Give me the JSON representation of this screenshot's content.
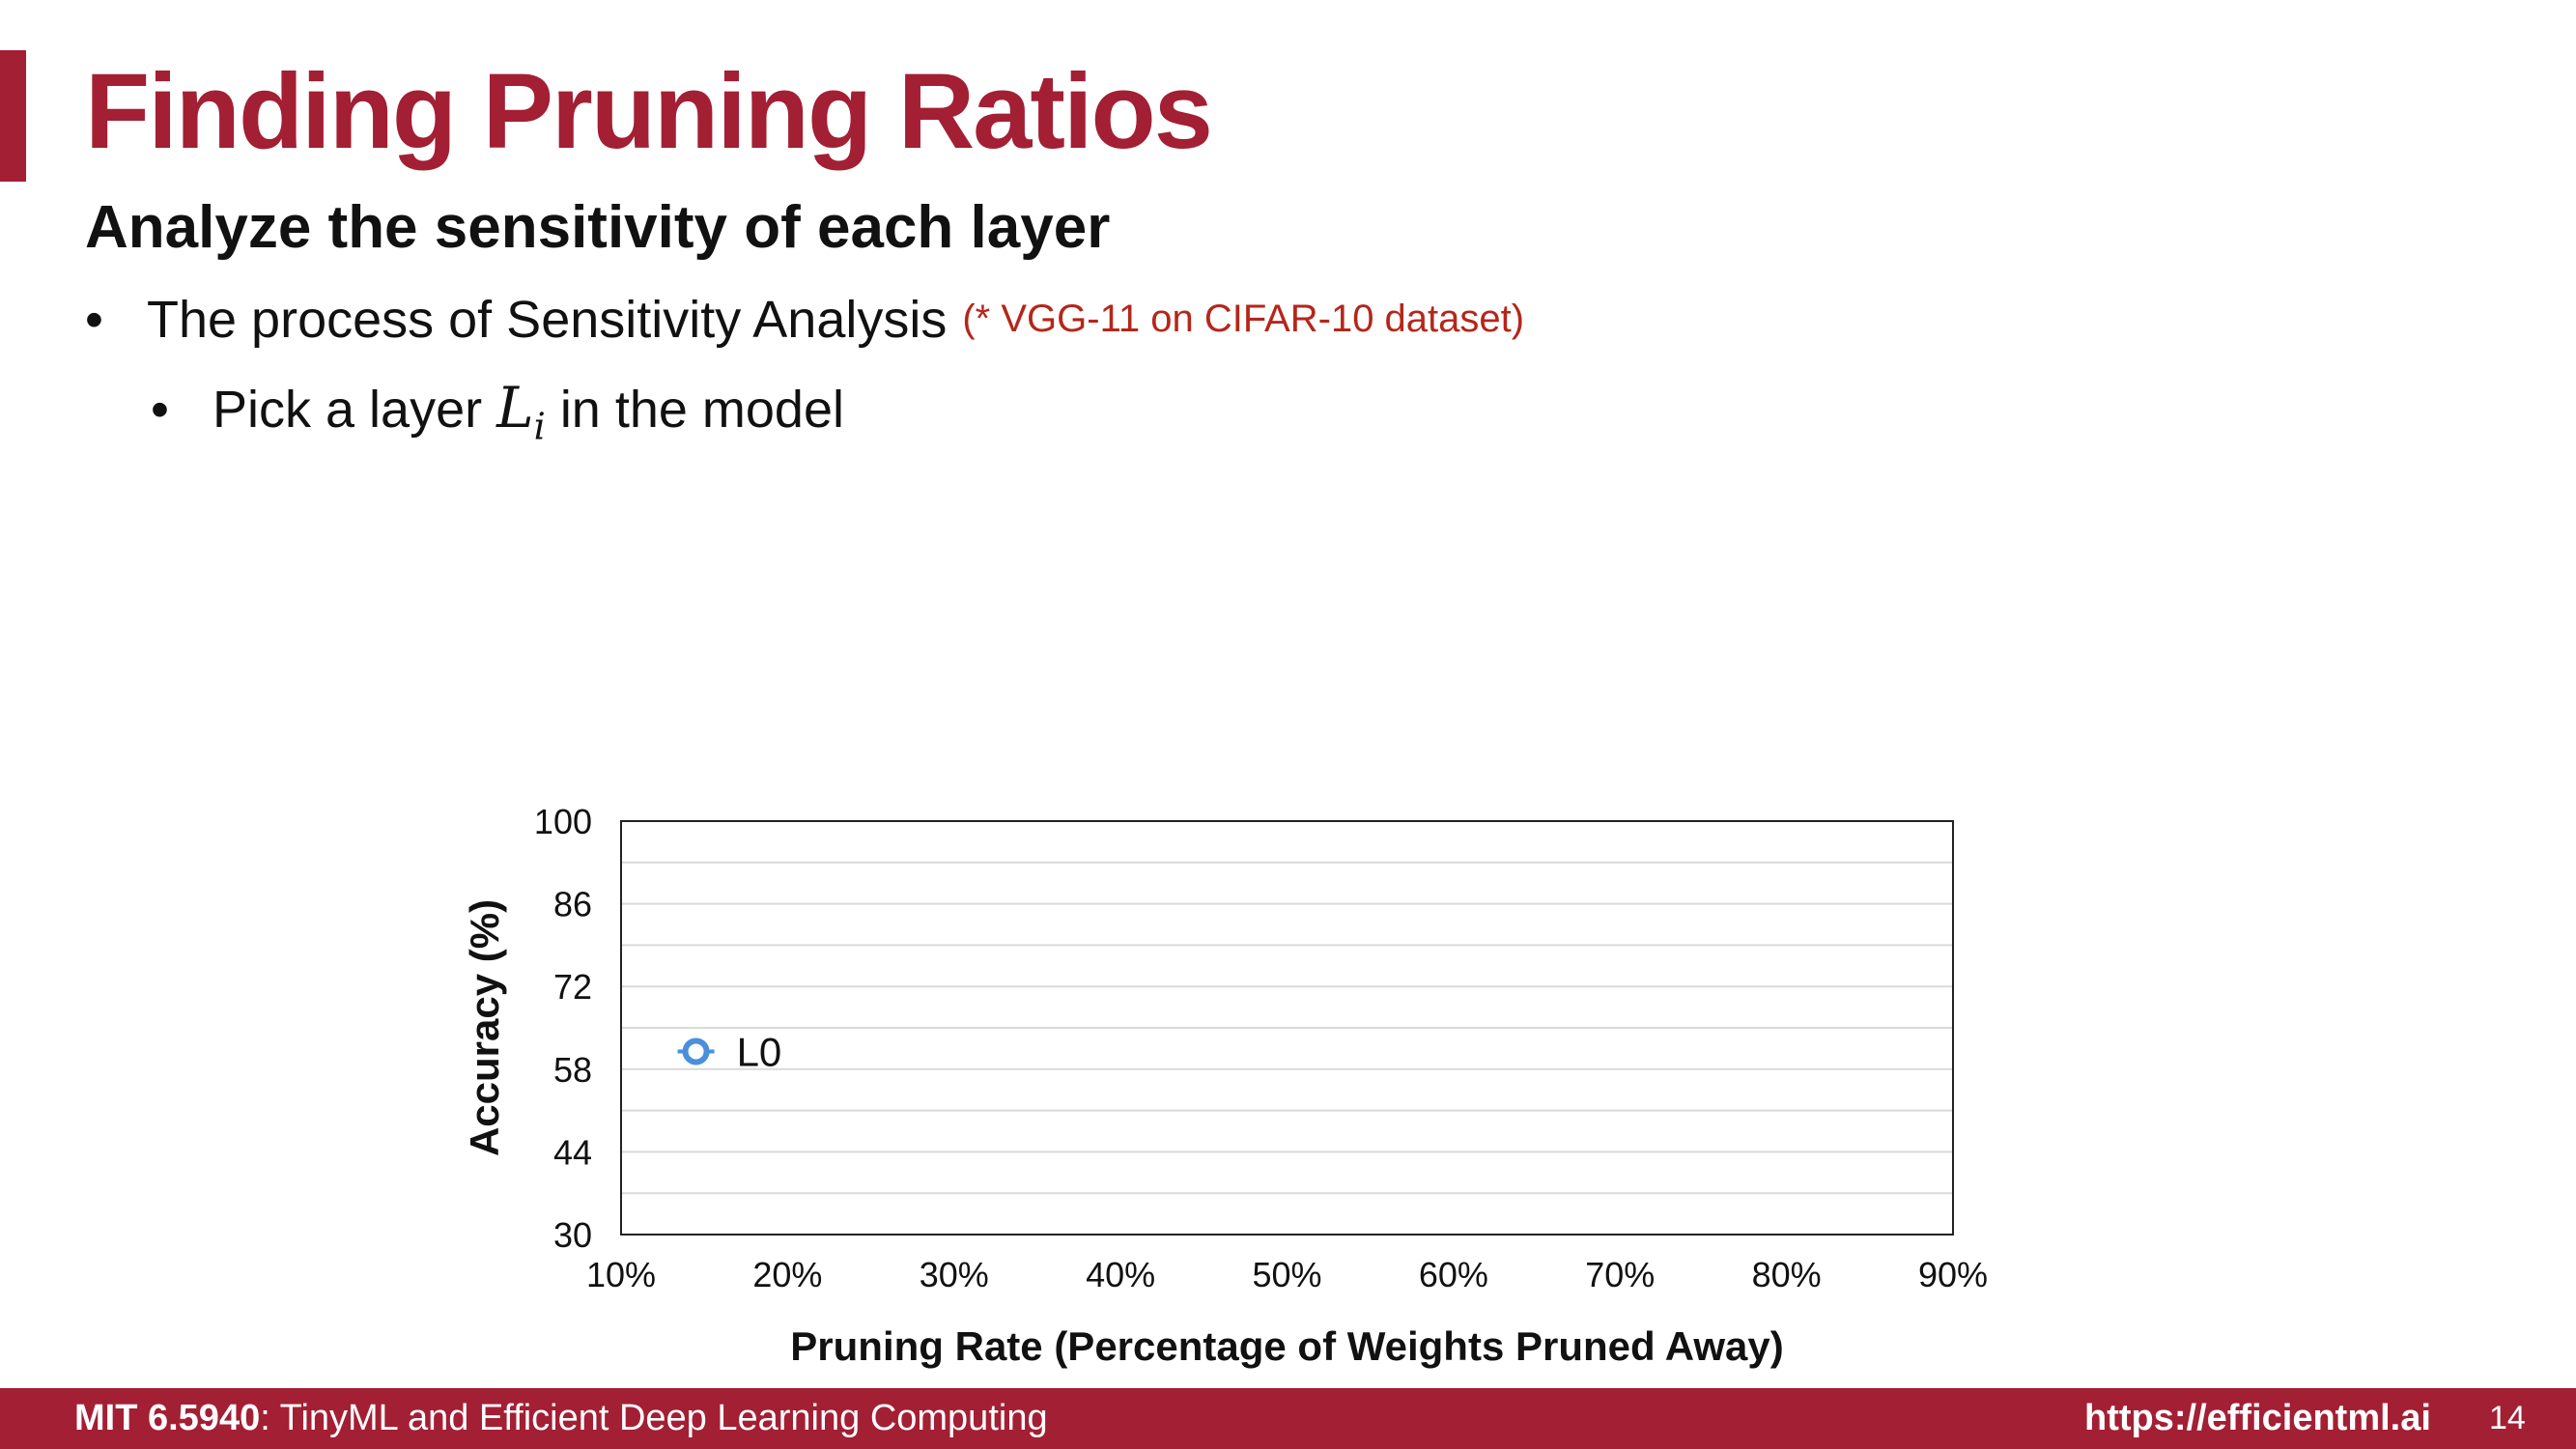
{
  "slide": {
    "title": "Finding Pruning Ratios",
    "subtitle": "Analyze the sensitivity of each layer",
    "bullet1": "The process of Sensitivity Analysis",
    "bullet1_note": "(* VGG-11 on CIFAR-10 dataset)",
    "bullet2_prefix": "Pick a layer",
    "bullet2_var": "L",
    "bullet2_sub": "i",
    "bullet2_suffix": "in the model"
  },
  "footer": {
    "course_code": "MIT 6.5940",
    "course_name": ": TinyML and Efficient Deep Learning Computing",
    "url": "https://efficientml.ai",
    "page": "14"
  },
  "colors": {
    "brand": "#a31f34",
    "note": "#b5261a",
    "series": "#4a90d9"
  },
  "chart_data": {
    "type": "scatter",
    "title": "",
    "xlabel": "Pruning Rate (Percentage of Weights Pruned Away)",
    "ylabel": "Accuracy (%)",
    "xlim": [
      10,
      90
    ],
    "ylim": [
      30,
      100
    ],
    "x_ticks": [
      "10%",
      "20%",
      "30%",
      "40%",
      "50%",
      "60%",
      "70%",
      "80%",
      "90%"
    ],
    "y_ticks": [
      "30",
      "44",
      "58",
      "72",
      "86",
      "100"
    ],
    "grid": true,
    "series": [
      {
        "name": "L0",
        "points": [
          {
            "x": 14.5,
            "y": 61
          }
        ]
      }
    ]
  }
}
